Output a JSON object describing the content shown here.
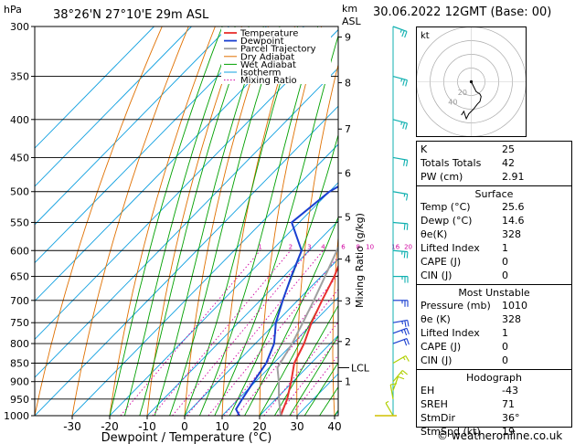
{
  "header": {
    "pressure_unit": "hPa",
    "location": "38°26'N  27°10'E  29m  ASL",
    "height_unit_top": "km",
    "height_unit_bottom": "ASL",
    "datetime": "30.06.2022  12GMT  (Base: 00)"
  },
  "chart_data": {
    "type": "line",
    "chart_kind": "skew-T log-P sounding",
    "xlabel": "Dewpoint / Temperature (°C)",
    "ylabel_right": "Mixing Ratio (g/kg)",
    "x_ticks": [
      -30,
      -20,
      -10,
      0,
      10,
      20,
      30,
      40
    ],
    "pressure_levels": [
      300,
      350,
      400,
      450,
      500,
      550,
      600,
      650,
      700,
      750,
      800,
      850,
      900,
      950,
      1000
    ],
    "height_ticks": [
      {
        "label": "9",
        "p": 310
      },
      {
        "label": "8",
        "p": 357
      },
      {
        "label": "7",
        "p": 412
      },
      {
        "label": "6",
        "p": 472
      },
      {
        "label": "5",
        "p": 541
      },
      {
        "label": "4",
        "p": 616
      },
      {
        "label": "3",
        "p": 701
      },
      {
        "label": "2",
        "p": 795
      },
      {
        "label": "1",
        "p": 899
      }
    ],
    "lcl": {
      "label": "LCL",
      "p": 862
    },
    "mixing_ratio_labels": [
      "1",
      "2",
      "3",
      "4",
      "6",
      "8",
      "10",
      "16",
      "20",
      "25"
    ],
    "mixing_ratio_values": [
      1,
      2,
      3,
      4,
      6,
      8,
      10,
      16,
      20,
      25
    ],
    "legend": [
      "Temperature",
      "Dewpoint",
      "Parcel Trajectory",
      "Dry Adiabat",
      "Wet Adiabat",
      "Isotherm",
      "Mixing Ratio"
    ],
    "colors": {
      "temperature": "#e8302e",
      "dewpoint": "#1a3fd0",
      "parcel": "#a0a0a0",
      "dry_adiabat": "#e07000",
      "wet_adiabat": "#00a000",
      "isotherm": "#10a0e0",
      "mixing_ratio": "#d000a0",
      "wind": "#10b0b0"
    },
    "series": [
      {
        "name": "Temperature",
        "points": [
          {
            "p": 1000,
            "t": 25.6
          },
          {
            "p": 950,
            "t": 23
          },
          {
            "p": 900,
            "t": 19.5
          },
          {
            "p": 850,
            "t": 15.5
          },
          {
            "p": 800,
            "t": 13
          },
          {
            "p": 750,
            "t": 9.5
          },
          {
            "p": 700,
            "t": 6.5
          },
          {
            "p": 650,
            "t": 3.5
          },
          {
            "p": 600,
            "t": -0.5
          },
          {
            "p": 550,
            "t": -4.5
          },
          {
            "p": 500,
            "t": -9.5
          },
          {
            "p": 450,
            "t": -14.5
          },
          {
            "p": 400,
            "t": -21
          },
          {
            "p": 350,
            "t": -28.5
          },
          {
            "p": 300,
            "t": -36.5
          }
        ]
      },
      {
        "name": "Dewpoint",
        "points": [
          {
            "p": 1000,
            "t": 14.6
          },
          {
            "p": 980,
            "t": 12
          },
          {
            "p": 950,
            "t": 11
          },
          {
            "p": 900,
            "t": 9.5
          },
          {
            "p": 850,
            "t": 8
          },
          {
            "p": 800,
            "t": 5
          },
          {
            "p": 750,
            "t": 0
          },
          {
            "p": 700,
            "t": -4
          },
          {
            "p": 650,
            "t": -8
          },
          {
            "p": 600,
            "t": -12
          },
          {
            "p": 550,
            "t": -22
          },
          {
            "p": 500,
            "t": -20
          },
          {
            "p": 470,
            "t": -16
          },
          {
            "p": 450,
            "t": -21
          },
          {
            "p": 400,
            "t": -30
          },
          {
            "p": 350,
            "t": -44
          },
          {
            "p": 300,
            "t": -52
          }
        ]
      },
      {
        "name": "Parcel Trajectory",
        "points": [
          {
            "p": 1000,
            "t": 25.6
          },
          {
            "p": 950,
            "t": 20.8
          },
          {
            "p": 900,
            "t": 16.2
          },
          {
            "p": 862,
            "t": 12.2
          },
          {
            "p": 800,
            "t": 9.8
          },
          {
            "p": 750,
            "t": 7.2
          },
          {
            "p": 700,
            "t": 4.3
          },
          {
            "p": 650,
            "t": 1
          },
          {
            "p": 600,
            "t": -2.6
          },
          {
            "p": 550,
            "t": -6.8
          },
          {
            "p": 500,
            "t": -11.7
          },
          {
            "p": 450,
            "t": -17.3
          },
          {
            "p": 400,
            "t": -24
          },
          {
            "p": 350,
            "t": -32
          },
          {
            "p": 300,
            "t": -41.5
          }
        ]
      }
    ],
    "wind_barbs": [
      {
        "p": 1000,
        "dir": 150,
        "spd": 5
      },
      {
        "p": 950,
        "dir": 170,
        "spd": 10
      },
      {
        "p": 925,
        "dir": 200,
        "spd": 10
      },
      {
        "p": 900,
        "dir": 220,
        "spd": 15
      },
      {
        "p": 850,
        "dir": 240,
        "spd": 15
      },
      {
        "p": 800,
        "dir": 250,
        "spd": 20
      },
      {
        "p": 775,
        "dir": 250,
        "spd": 25
      },
      {
        "p": 750,
        "dir": 260,
        "spd": 25
      },
      {
        "p": 700,
        "dir": 270,
        "spd": 25
      },
      {
        "p": 650,
        "dir": 270,
        "spd": 25
      },
      {
        "p": 600,
        "dir": 275,
        "spd": 25
      },
      {
        "p": 550,
        "dir": 275,
        "spd": 20
      },
      {
        "p": 500,
        "dir": 280,
        "spd": 15
      },
      {
        "p": 450,
        "dir": 280,
        "spd": 20
      },
      {
        "p": 400,
        "dir": 285,
        "spd": 25
      },
      {
        "p": 350,
        "dir": 285,
        "spd": 25
      },
      {
        "p": 300,
        "dir": 290,
        "spd": 25
      }
    ],
    "hodograph": {
      "label": "kt",
      "ring_labels": [
        "20",
        "40"
      ],
      "points": [
        [
          0,
          0
        ],
        [
          2,
          4
        ],
        [
          4,
          8
        ],
        [
          7,
          10
        ],
        [
          8,
          12
        ],
        [
          7,
          16
        ],
        [
          5,
          18
        ],
        [
          2,
          22
        ],
        [
          -2,
          26
        ],
        [
          -4,
          30
        ],
        [
          -6,
          24
        ],
        [
          -8,
          27
        ]
      ]
    }
  },
  "indices": {
    "top": [
      {
        "label": "K",
        "value": "25"
      },
      {
        "label": "Totals Totals",
        "value": "42"
      },
      {
        "label": "PW (cm)",
        "value": "2.91"
      }
    ],
    "surface_title": "Surface",
    "surface": [
      {
        "label": "Temp (°C)",
        "value": "25.6"
      },
      {
        "label": "Dewp (°C)",
        "value": "14.6"
      },
      {
        "label": "θe(K)",
        "value": "328"
      },
      {
        "label": "Lifted Index",
        "value": "1"
      },
      {
        "label": "CAPE (J)",
        "value": "0"
      },
      {
        "label": "CIN (J)",
        "value": "0"
      }
    ],
    "mu_title": "Most Unstable",
    "mu": [
      {
        "label": "Pressure (mb)",
        "value": "1010"
      },
      {
        "label": "θe (K)",
        "value": "328"
      },
      {
        "label": "Lifted Index",
        "value": "1"
      },
      {
        "label": "CAPE (J)",
        "value": "0"
      },
      {
        "label": "CIN (J)",
        "value": "0"
      }
    ],
    "hodo_title": "Hodograph",
    "hodo": [
      {
        "label": "EH",
        "value": "-43"
      },
      {
        "label": "SREH",
        "value": "71"
      },
      {
        "label": "StmDir",
        "value": "36°"
      },
      {
        "label": "StmSpd (kt)",
        "value": "19"
      }
    ]
  },
  "footer": "© weatheronline.co.uk"
}
